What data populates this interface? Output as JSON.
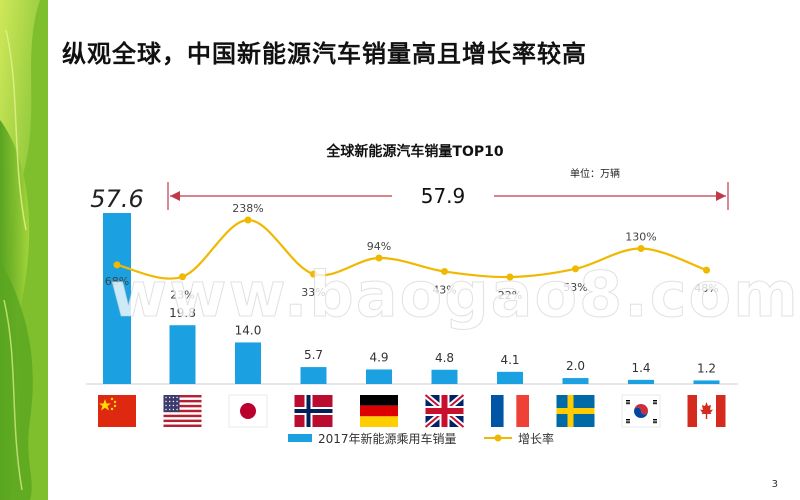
{
  "slide": {
    "title": "纵观全球，中国新能源汽车销量高且增长率较高",
    "page_number": "3",
    "watermark": "www.baogao8.com"
  },
  "colors": {
    "bar": "#1ba1e2",
    "line": "#f0b800",
    "bracket": "#c0394b",
    "axis": "#cccccc"
  },
  "chart_data": {
    "type": "bar",
    "title": "全球新能源汽车销量TOP10",
    "unit_label": "单位：万辆",
    "gap_annotation": "57.9",
    "categories": [
      "cn-flag-icon",
      "us-flag-icon",
      "jp-flag-icon",
      "no-flag-icon",
      "de-flag-icon",
      "uk-flag-icon",
      "fr-flag-icon",
      "se-flag-icon",
      "kr-flag-icon",
      "ca-flag-icon"
    ],
    "series": [
      {
        "name": "2017年新能源乘用车销量",
        "kind": "bar",
        "values": [
          57.6,
          19.8,
          14.0,
          5.7,
          4.9,
          4.8,
          4.1,
          2.0,
          1.4,
          1.2
        ],
        "labels": [
          "57.6",
          "19.8",
          "14.0",
          "5.7",
          "4.9",
          "4.8",
          "4.1",
          "2.0",
          "1.4",
          "1.2"
        ]
      },
      {
        "name": "增长率",
        "kind": "line",
        "values": [
          68,
          23,
          238,
          33,
          94,
          43,
          22,
          53,
          130,
          48
        ],
        "labels": [
          "68%",
          "23%",
          "238%",
          "33%",
          "94%",
          "43%",
          "22%",
          "53%",
          "130%",
          "48%"
        ]
      }
    ],
    "legend_position": "bottom",
    "grid": false
  }
}
